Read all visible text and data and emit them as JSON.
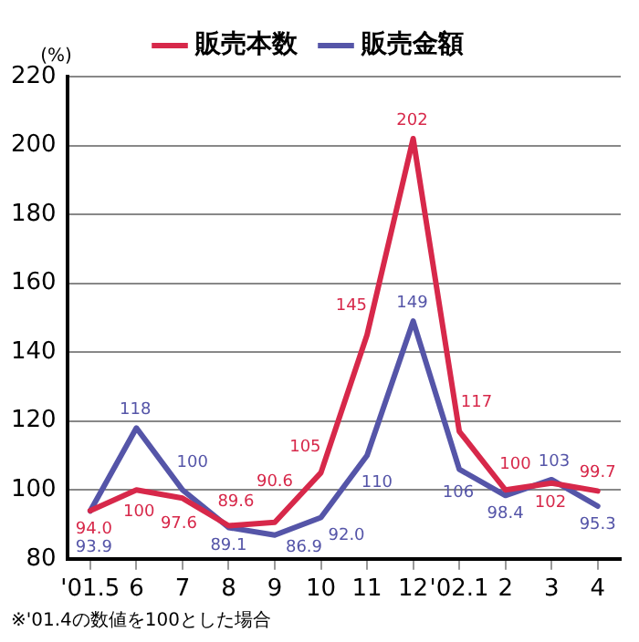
{
  "chart_data": {
    "type": "line",
    "ylabel": "(%)",
    "categories": [
      "'01.5",
      "6",
      "7",
      "8",
      "9",
      "10",
      "11",
      "12",
      "'02.1",
      "2",
      "3",
      "4"
    ],
    "series": [
      {
        "name": "販売本数",
        "color": "#d7284a",
        "values": [
          94.0,
          100,
          97.6,
          89.6,
          90.6,
          105,
          145,
          202,
          117,
          100,
          102,
          99.7
        ],
        "value_labels": [
          "94.0",
          "100",
          "97.6",
          "89.6",
          "90.6",
          "105",
          "145",
          "202",
          "117",
          "100",
          "102",
          "99.7"
        ]
      },
      {
        "name": "販売金額",
        "color": "#5555a8",
        "values": [
          93.9,
          118,
          100,
          89.1,
          86.9,
          92.0,
          110,
          149,
          106,
          98.4,
          103,
          95.3
        ],
        "value_labels": [
          "93.9",
          "118",
          "100",
          "89.1",
          "86.9",
          "92.0",
          "110",
          "149",
          "106",
          "98.4",
          "103",
          "95.3"
        ]
      }
    ],
    "ylim": [
      80,
      220
    ],
    "yticks": [
      80,
      100,
      120,
      140,
      160,
      180,
      200,
      220
    ],
    "grid": "y",
    "legend": "top",
    "marker": "none",
    "line_style": "solid",
    "annotations": [
      "※'01.4の数値を100とした場合"
    ]
  }
}
